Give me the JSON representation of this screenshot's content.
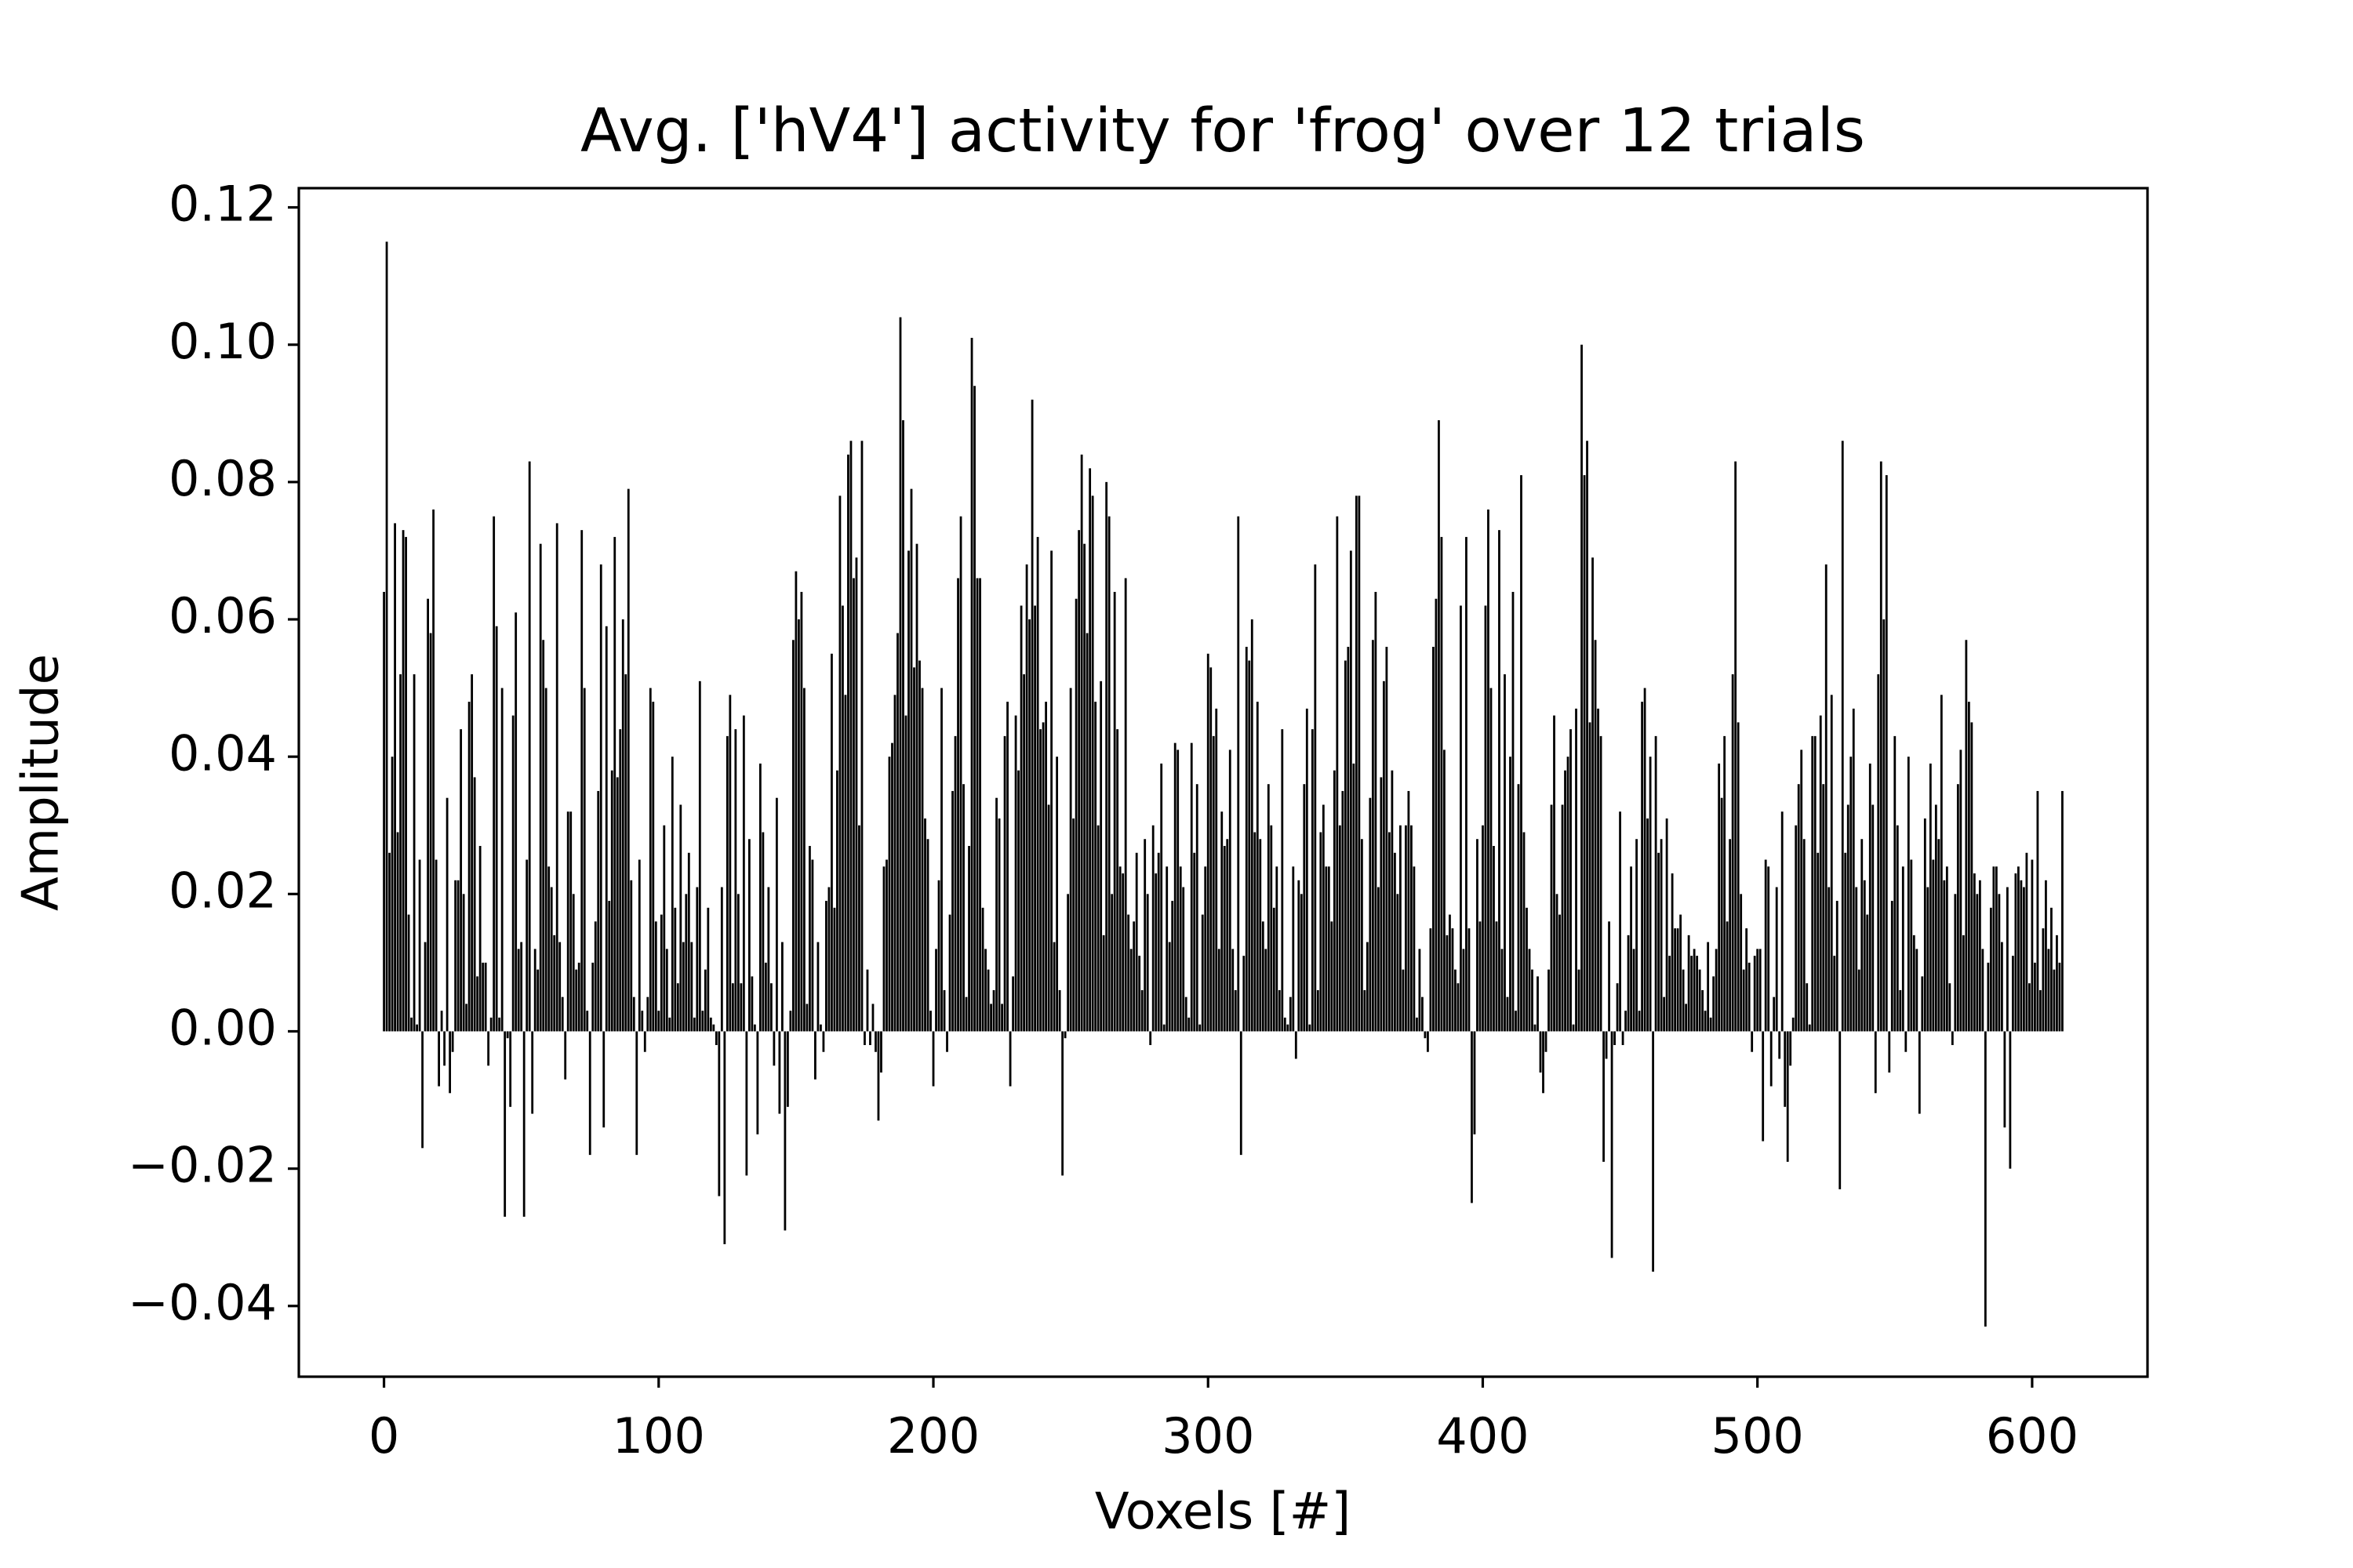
{
  "chart_data": {
    "type": "bar",
    "title": "Avg. ['hV4'] activity for 'frog' over 12 trials",
    "x_label": "Voxels [#]",
    "y_label": "Amplitude",
    "color": "#000000",
    "xlim": [
      -31,
      642
    ],
    "ylim": [
      -0.0503,
      0.1228
    ],
    "xticks": [
      0,
      100,
      200,
      300,
      400,
      500,
      600
    ],
    "yticks": [
      {
        "value": -0.04,
        "label": "−0.04"
      },
      {
        "value": -0.02,
        "label": "−0.02"
      },
      {
        "value": 0,
        "label": "0.00"
      },
      {
        "value": 0.02,
        "label": "0.02"
      },
      {
        "value": 0.04,
        "label": "0.04"
      },
      {
        "value": 0.06,
        "label": "0.06"
      },
      {
        "value": 0.08,
        "label": "0.08"
      },
      {
        "value": 0.1,
        "label": "0.10"
      },
      {
        "value": 0.12,
        "label": "0.12"
      }
    ],
    "values": [
      0.064,
      0.115,
      0.026,
      0.04,
      0.074,
      0.029,
      0.052,
      0.073,
      0.072,
      0.017,
      0.002,
      0.052,
      0.001,
      0.025,
      -0.017,
      0.013,
      0.063,
      0.058,
      0.076,
      0.025,
      -0.008,
      0.003,
      -0.005,
      0.034,
      -0.009,
      -0.003,
      0.022,
      0.022,
      0.044,
      0.02,
      0.004,
      0.048,
      0.052,
      0.037,
      0.008,
      0.027,
      0.01,
      0.01,
      -0.005,
      0.002,
      0.075,
      0.059,
      0.002,
      0.05,
      -0.027,
      -0.001,
      -0.011,
      0.046,
      0.061,
      0.012,
      0.013,
      -0.027,
      0.025,
      0.083,
      -0.012,
      0.012,
      0.009,
      0.071,
      0.057,
      0.05,
      0.024,
      0.021,
      0.014,
      0.074,
      0.013,
      0.005,
      -0.007,
      0.032,
      0.032,
      0.02,
      0.009,
      0.01,
      0.073,
      0.05,
      0.003,
      -0.018,
      0.01,
      0.016,
      0.035,
      0.068,
      -0.014,
      0.059,
      0.019,
      0.038,
      0.072,
      0.037,
      0.044,
      0.06,
      0.052,
      0.079,
      0.022,
      0.005,
      -0.018,
      0.025,
      0.003,
      -0.003,
      0.005,
      0.05,
      0.048,
      0.016,
      0.003,
      0.017,
      0.03,
      0.012,
      0.002,
      0.04,
      0.018,
      0.007,
      0.033,
      0.013,
      0.02,
      0.026,
      0.013,
      0.002,
      0.021,
      0.051,
      0.003,
      0.009,
      0.018,
      0.002,
      0.001,
      -0.002,
      -0.024,
      0.021,
      -0.031,
      0.043,
      0.049,
      0.007,
      0.044,
      0.02,
      0.007,
      0.046,
      -0.021,
      0.028,
      0.008,
      0.001,
      -0.015,
      0.039,
      0.029,
      0.01,
      0.021,
      0.007,
      -0.005,
      0.034,
      -0.012,
      0.013,
      -0.029,
      -0.011,
      0.003,
      0.057,
      0.067,
      0.06,
      0.064,
      0.05,
      0.004,
      0.027,
      0.025,
      -0.007,
      0.013,
      0.001,
      -0.003,
      0.019,
      0.021,
      0.055,
      0.018,
      0.038,
      0.078,
      0.062,
      0.049,
      0.084,
      0.086,
      0.066,
      0.069,
      0.03,
      0.086,
      -0.002,
      0.009,
      -0.002,
      0.004,
      -0.003,
      -0.013,
      -0.006,
      0.024,
      0.025,
      0.04,
      0.042,
      0.049,
      0.058,
      0.104,
      0.089,
      0.046,
      0.07,
      0.079,
      0.053,
      0.071,
      0.054,
      0.05,
      0.031,
      0.028,
      0.003,
      -0.008,
      0.012,
      0.022,
      0.05,
      0.006,
      -0.003,
      0.017,
      0.035,
      0.043,
      0.066,
      0.075,
      0.036,
      0.005,
      0.027,
      0.101,
      0.094,
      0.066,
      0.066,
      0.018,
      0.012,
      0.009,
      0.004,
      0.006,
      0.034,
      0.031,
      0.004,
      0.043,
      0.048,
      -0.008,
      0.008,
      0.046,
      0.038,
      0.062,
      0.052,
      0.068,
      0.06,
      0.092,
      0.062,
      0.072,
      0.044,
      0.045,
      0.048,
      0.033,
      0.07,
      0.013,
      0.04,
      0.006,
      -0.021,
      -0.001,
      0.02,
      0.05,
      0.031,
      0.063,
      0.073,
      0.084,
      0.071,
      0.058,
      0.082,
      0.078,
      0.048,
      0.03,
      0.051,
      0.014,
      0.08,
      0.075,
      0.02,
      0.064,
      0.044,
      0.024,
      0.023,
      0.066,
      0.017,
      0.012,
      0.016,
      0.026,
      0.011,
      0.006,
      0.028,
      0.02,
      -0.002,
      0.03,
      0.023,
      0.026,
      0.039,
      0.001,
      0.024,
      0.013,
      0.019,
      0.042,
      0.041,
      0.024,
      0.021,
      0.005,
      0.002,
      0.042,
      0.026,
      0.036,
      0.001,
      0.017,
      0.024,
      0.055,
      0.053,
      0.043,
      0.047,
      0.012,
      0.032,
      0.027,
      0.028,
      0.041,
      0.012,
      0.006,
      0.075,
      -0.018,
      0.011,
      0.056,
      0.054,
      0.06,
      0.029,
      0.048,
      0.028,
      0.016,
      0.012,
      0.036,
      0.03,
      0.018,
      0.024,
      0.006,
      0.044,
      0.002,
      0.001,
      0.005,
      0.024,
      -0.004,
      0.022,
      0.02,
      0.036,
      0.047,
      0.001,
      0.044,
      0.068,
      0.006,
      0.029,
      0.033,
      0.024,
      0.024,
      0.016,
      0.038,
      0.075,
      0.03,
      0.035,
      0.054,
      0.056,
      0.07,
      0.039,
      0.078,
      0.078,
      0.028,
      0.006,
      0.013,
      0.034,
      0.057,
      0.064,
      0.021,
      0.037,
      0.051,
      0.056,
      0.029,
      0.038,
      0.026,
      0.02,
      0.03,
      0.009,
      0.03,
      0.035,
      0.03,
      0.024,
      0.002,
      0.012,
      0.005,
      -0.001,
      -0.003,
      0.015,
      0.056,
      0.063,
      0.089,
      0.072,
      0.041,
      0.014,
      0.017,
      0.015,
      0.009,
      0.007,
      0.062,
      0.012,
      0.072,
      0.015,
      -0.025,
      -0.015,
      0.028,
      0.016,
      0.03,
      0.062,
      0.076,
      0.05,
      0.027,
      0.016,
      0.073,
      0.012,
      0.052,
      0.005,
      0.04,
      0.064,
      0.003,
      0.036,
      0.081,
      0.029,
      0.018,
      0.012,
      0.009,
      0.001,
      0.008,
      -0.006,
      -0.009,
      -0.003,
      0.009,
      0.033,
      0.046,
      0.02,
      0.017,
      0.033,
      0.038,
      0.04,
      0.044,
      0.001,
      0.047,
      0.009,
      0.1,
      0.081,
      0.086,
      0.045,
      0.069,
      0.057,
      0.047,
      0.043,
      -0.019,
      -0.004,
      0.016,
      -0.033,
      -0.002,
      0.007,
      0.032,
      -0.002,
      0.003,
      0.014,
      0.024,
      0.012,
      0.028,
      0.003,
      0.048,
      0.05,
      0.031,
      0.04,
      -0.035,
      0.043,
      0.026,
      0.028,
      0.005,
      0.031,
      0.011,
      0.023,
      0.015,
      0.015,
      0.017,
      0.009,
      0.004,
      0.014,
      0.011,
      0.012,
      0.011,
      0.009,
      0.006,
      0.003,
      0.013,
      0.002,
      0.008,
      0.012,
      0.039,
      0.034,
      0.043,
      0.016,
      0.028,
      0.052,
      0.083,
      0.045,
      0.02,
      0.009,
      0.015,
      0.01,
      -0.003,
      0.011,
      0.012,
      0.012,
      -0.016,
      0.025,
      0.024,
      -0.008,
      0.005,
      0.021,
      -0.004,
      0.032,
      -0.011,
      -0.019,
      -0.005,
      0.002,
      0.03,
      0.036,
      0.041,
      0.028,
      0.007,
      0.001,
      0.043,
      0.043,
      0.026,
      0.046,
      0.036,
      0.068,
      0.021,
      0.049,
      0.011,
      0.019,
      -0.023,
      0.086,
      0.026,
      0.033,
      0.04,
      0.047,
      0.021,
      0.009,
      0.028,
      0.022,
      0.017,
      0.039,
      0.033,
      -0.009,
      0.052,
      0.083,
      0.06,
      0.081,
      -0.006,
      0.019,
      0.043,
      0.03,
      0.006,
      0.024,
      -0.003,
      0.04,
      0.025,
      0.014,
      0.012,
      -0.012,
      0.008,
      0.031,
      0.021,
      0.039,
      0.025,
      0.033,
      0.028,
      0.049,
      0.022,
      0.024,
      0.007,
      -0.002,
      0.02,
      0.036,
      0.041,
      0.014,
      0.057,
      0.048,
      0.045,
      0.023,
      0.02,
      0.022,
      0.012,
      -0.043,
      0.01,
      0.018,
      0.024,
      0.024,
      0.02,
      0.013,
      -0.014,
      0.021,
      -0.02,
      0.011,
      0.023,
      0.024,
      0.022,
      0.021,
      0.026,
      0.007,
      0.025,
      0.01,
      0.035,
      0.006,
      0.015,
      0.022,
      0.012,
      0.018,
      0.009,
      0.014,
      0.01,
      0.035
    ]
  }
}
